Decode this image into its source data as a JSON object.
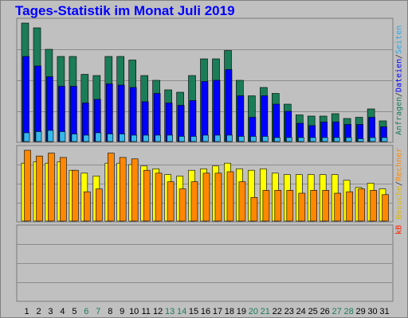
{
  "title": "Tages-Statistik im Monat Juli 2019",
  "legend": {
    "anfragen": "Anfragen",
    "dateien": "Dateien",
    "seiten": "Seiten",
    "besuche": "Besuche",
    "rechner": "Rechner",
    "kb": "kB",
    "separator": " / "
  },
  "colors": {
    "anfragen": "#1b7c58",
    "dateien": "#0000ff",
    "seiten": "#35b8ee",
    "besuche": "#ffff00",
    "rechner": "#ff8800",
    "kb": "#ff2200",
    "weekday_label": "#000000",
    "weekend_label": "#1b7c58",
    "plot_bg": "#c0c0c0",
    "title": "#0000ff"
  },
  "chart_data": {
    "type": "bar",
    "x": [
      "1",
      "2",
      "3",
      "4",
      "5",
      "6",
      "7",
      "8",
      "9",
      "10",
      "11",
      "12",
      "13",
      "14",
      "15",
      "16",
      "17",
      "18",
      "19",
      "20",
      "21",
      "22",
      "23",
      "24",
      "25",
      "26",
      "27",
      "28",
      "29",
      "30",
      "31"
    ],
    "weekend_days": [
      "6",
      "7",
      "13",
      "14",
      "20",
      "21",
      "27",
      "28"
    ],
    "panels": [
      {
        "name": "requests",
        "series": [
          {
            "name": "Anfragen",
            "values": [
              1000,
              960,
              780,
              720,
              720,
              570,
              560,
              720,
              720,
              690,
              560,
              520,
              440,
              420,
              560,
              700,
              700,
              770,
              520,
              390,
              460,
              410,
              320,
              230,
              220,
              220,
              240,
              200,
              210,
              280,
              180
            ]
          },
          {
            "name": "Dateien",
            "values": [
              720,
              640,
              550,
              470,
              470,
              330,
              360,
              490,
              480,
              460,
              340,
              410,
              330,
              310,
              350,
              510,
              520,
              610,
              390,
              210,
              390,
              320,
              260,
              160,
              140,
              170,
              170,
              150,
              150,
              210,
              130
            ]
          },
          {
            "name": "Seiten",
            "values": [
              80,
              90,
              100,
              90,
              70,
              60,
              80,
              70,
              70,
              60,
              60,
              60,
              60,
              50,
              50,
              60,
              60,
              60,
              50,
              50,
              50,
              40,
              40,
              40,
              40,
              40,
              40,
              40,
              30,
              40,
              40
            ]
          }
        ]
      },
      {
        "name": "visits",
        "series": [
          {
            "name": "Besuche",
            "values": [
              410,
              420,
              410,
              420,
              360,
              340,
              320,
              410,
              410,
              400,
              390,
              370,
              330,
              320,
              360,
              370,
              390,
              410,
              370,
              360,
              370,
              340,
              330,
              330,
              330,
              330,
              330,
              290,
              240,
              270,
              230
            ]
          },
          {
            "name": "Rechner",
            "values": [
              500,
              460,
              480,
              450,
              360,
              210,
              230,
              480,
              450,
              440,
              360,
              340,
              280,
              230,
              280,
              340,
              340,
              350,
              280,
              170,
              220,
              220,
              220,
              200,
              220,
              220,
              200,
              210,
              230,
              220,
              190
            ]
          }
        ]
      },
      {
        "name": "traffic",
        "series": [
          {
            "name": "kB",
            "values": []
          }
        ]
      }
    ]
  }
}
